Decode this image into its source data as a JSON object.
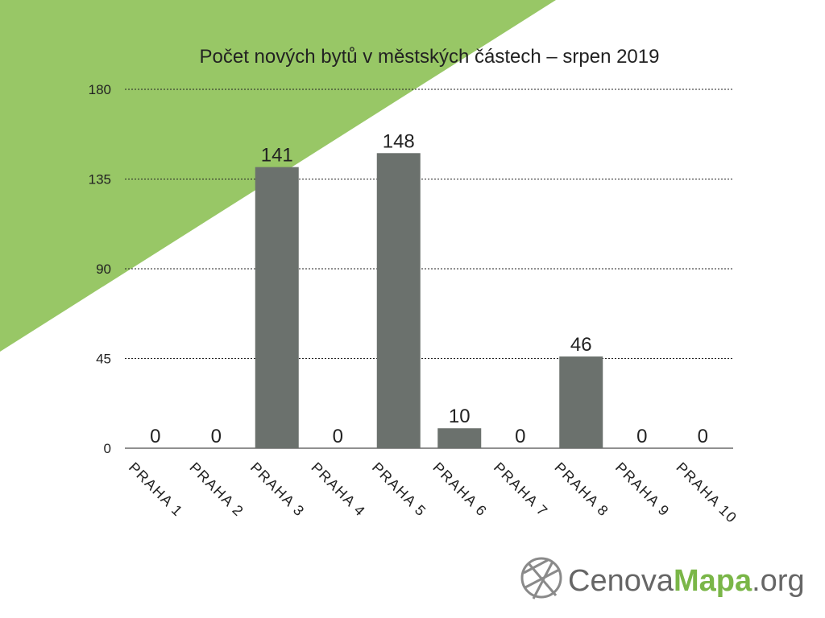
{
  "chart_data": {
    "type": "bar",
    "title": "Počet nových bytů v městských částech – srpen 2019",
    "categories": [
      "PRAHA 1",
      "PRAHA 2",
      "PRAHA 3",
      "PRAHA 4",
      "PRAHA 5",
      "PRAHA 6",
      "PRAHA 7",
      "PRAHA 8",
      "PRAHA 9",
      "PRAHA 10"
    ],
    "values": [
      0,
      0,
      141,
      0,
      148,
      10,
      0,
      46,
      0,
      0
    ],
    "color": "#6b716d",
    "ylim": [
      0,
      180
    ],
    "yticks": [
      0,
      45,
      90,
      135,
      180
    ],
    "grid": true
  },
  "logo": {
    "parts": [
      "Cenova",
      "Mapa",
      ".org"
    ]
  }
}
